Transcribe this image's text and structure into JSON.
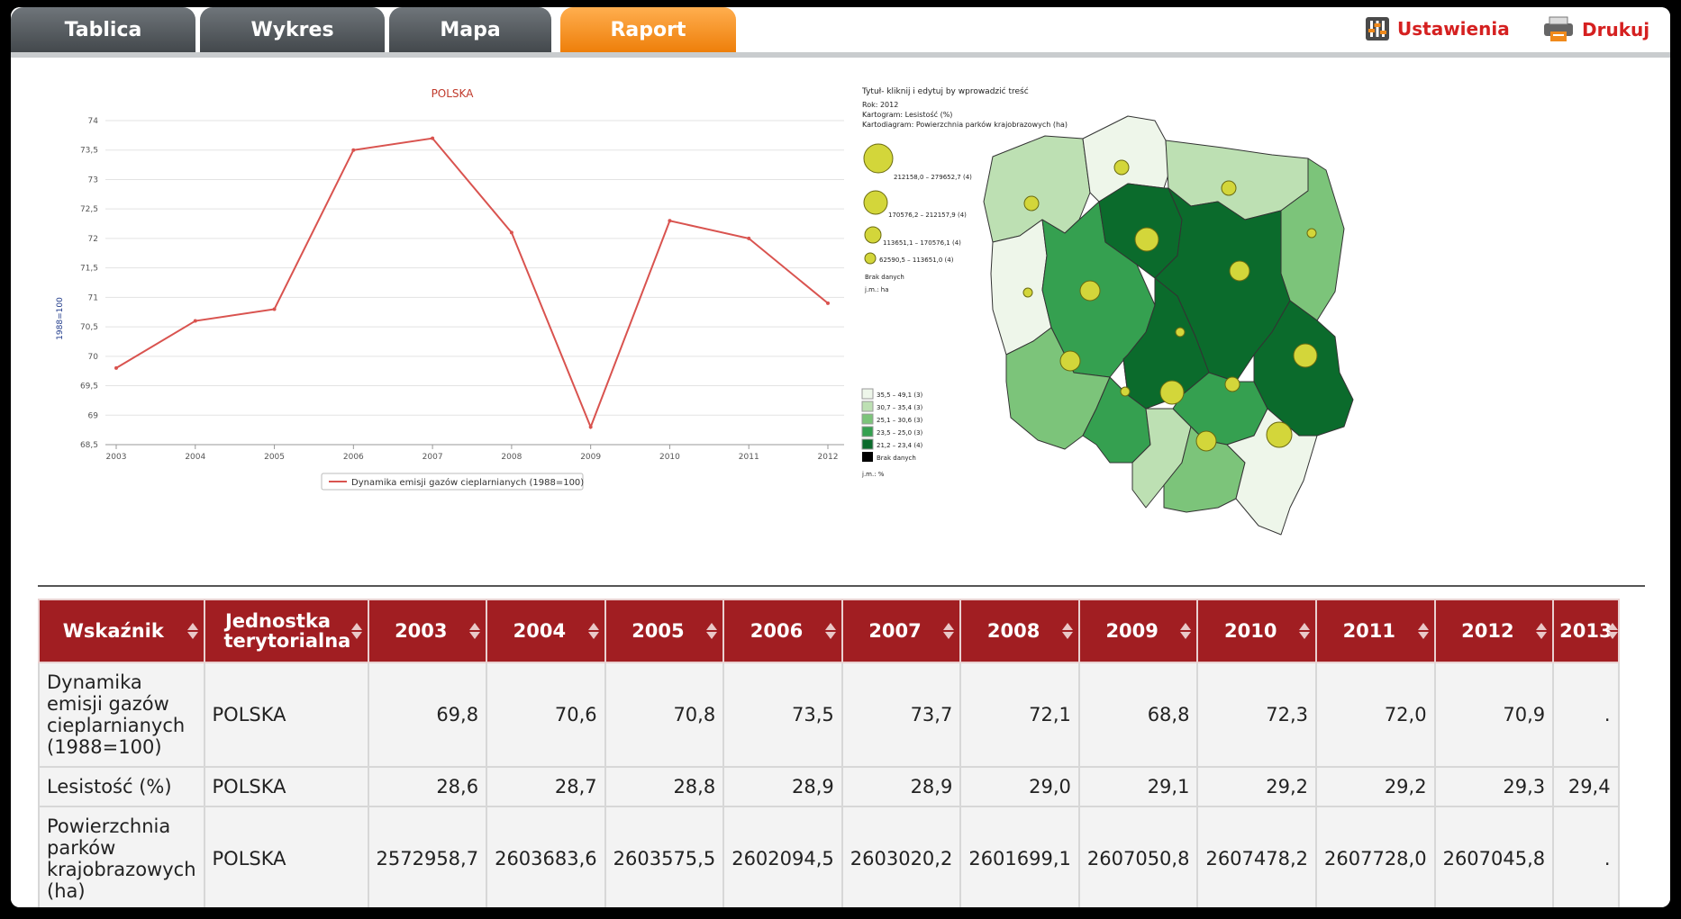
{
  "tabs": [
    {
      "label": "Tablica",
      "active": false
    },
    {
      "label": "Wykres",
      "active": false
    },
    {
      "label": "Mapa",
      "active": false
    },
    {
      "label": "Raport",
      "active": true
    }
  ],
  "actions": {
    "settings_label": "Ustawienia",
    "settings_icon": "sliders-icon",
    "print_label": "Drukuj",
    "print_icon": "printer-icon"
  },
  "colors": {
    "accent_tab": "#f08a1c",
    "header_red": "#a11e22",
    "action_red": "#d52020",
    "line": "#d9534f"
  },
  "chart_data": {
    "type": "line",
    "title": "POLSKA",
    "ylabel": "1988=100",
    "xlabel": "",
    "categories": [
      "2003",
      "2004",
      "2005",
      "2006",
      "2007",
      "2008",
      "2009",
      "2010",
      "2011",
      "2012"
    ],
    "series": [
      {
        "name": "Dynamika emisji gazów cieplarnianych (1988=100)",
        "values": [
          69.8,
          70.6,
          70.8,
          73.5,
          73.7,
          72.1,
          68.8,
          72.3,
          72.0,
          70.9
        ]
      }
    ],
    "ylim": [
      68.5,
      74
    ],
    "yticks": [
      "68,5",
      "69",
      "69,5",
      "70",
      "70,5",
      "71",
      "71,5",
      "72",
      "72,5",
      "73",
      "73,5",
      "74"
    ],
    "grid": true,
    "legend": "bottom"
  },
  "map": {
    "title": "Tytuł- kliknij i edytuj by wprowadzić treść",
    "year": "Rok: 2012",
    "cartogram": "Kartogram: Lesistość (%)",
    "cartodiagram": "Kartodiagram: Powierzchnia parków krajobrazowych (ha)",
    "circle_legend": [
      "212158,0 – 279652,7 (4)",
      "170576,2 – 212157,9 (4)",
      "113651,1 – 170576,1 (4)",
      "62590,5 – 113651,0 (4)"
    ],
    "no_data_circle": "Brak danych",
    "circle_unit": "j.m.: ha",
    "color_legend": [
      {
        "label": "35,5 – 49,1 (3)",
        "color": "#eef6ea"
      },
      {
        "label": "30,7 – 35,4 (3)",
        "color": "#bde0b3"
      },
      {
        "label": "25,1 – 30,6 (3)",
        "color": "#7cc47a"
      },
      {
        "label": "23,5 – 25,0 (3)",
        "color": "#35a050"
      },
      {
        "label": "21,2 – 23,4 (4)",
        "color": "#0b6b2c"
      }
    ],
    "no_data_color": "Brak danych",
    "color_unit": "j.m.: %"
  },
  "table": {
    "headers": [
      "Wskaźnik",
      "Jednostka terytorialna",
      "2003",
      "2004",
      "2005",
      "2006",
      "2007",
      "2008",
      "2009",
      "2010",
      "2011",
      "2012",
      "2013"
    ],
    "rows": [
      {
        "name": "Dynamika emisji gazów cieplarnianych (1988=100)",
        "unit": "POLSKA",
        "values": [
          "69,8",
          "70,6",
          "70,8",
          "73,5",
          "73,7",
          "72,1",
          "68,8",
          "72,3",
          "72,0",
          "70,9",
          "."
        ]
      },
      {
        "name": "Lesistość (%)",
        "unit": "POLSKA",
        "values": [
          "28,6",
          "28,7",
          "28,8",
          "28,9",
          "28,9",
          "29,0",
          "29,1",
          "29,2",
          "29,2",
          "29,3",
          "29,4"
        ]
      },
      {
        "name": "Powierzchnia parków krajobrazowych (ha)",
        "unit": "POLSKA",
        "values": [
          "2572958,7",
          "2603683,6",
          "2603575,5",
          "2602094,5",
          "2603020,2",
          "2601699,1",
          "2607050,8",
          "2607478,2",
          "2607728,0",
          "2607045,8",
          "."
        ]
      }
    ]
  }
}
